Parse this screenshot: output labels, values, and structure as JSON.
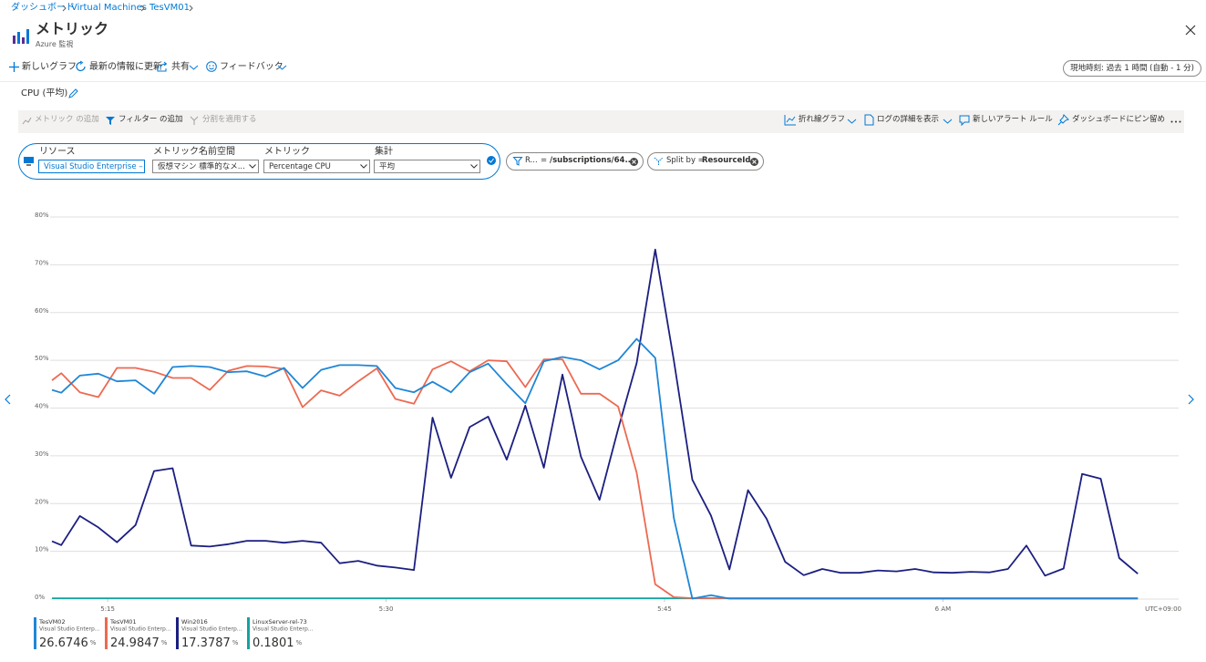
{
  "breadcrumb": [
    "ダッシュボード",
    "Virtual Machines",
    "TesVM01"
  ],
  "header": {
    "title": "メトリック",
    "subtitle": "Azure 監視"
  },
  "toolbar": [
    "新しいグラフ",
    "最新の情報に更新",
    "共有",
    "フィードバック"
  ],
  "time_range": "現地時刻: 過去 1 時間 (自動 - 1 分)",
  "panel": {
    "title": "CPU (平均)",
    "actions_left": [
      "メトリック の追加",
      "フィルター の追加",
      "分割を適用する"
    ],
    "actions_right": [
      "折れ線グラフ",
      "ログの詳細を表示",
      "新しいアラート ルール",
      "ダッシュボードにピン留め"
    ],
    "selector": {
      "labels": [
        "リソース",
        "メトリック名前空間",
        "メトリック",
        "集計"
      ],
      "values": [
        "Visual Studio Enterprise – ...",
        "仮想マシン 標準的なメ...",
        "Percentage CPU",
        "平均"
      ]
    },
    "filter": {
      "key": "R...",
      "operator": "=",
      "value": "/subscriptions/64..."
    },
    "split": {
      "label": "Split by =",
      "value": "ResourceId"
    }
  },
  "chart_data": {
    "type": "line",
    "x": [
      12,
      12.5,
      13.5,
      14.5,
      15.5,
      16.5,
      17.5,
      18.5,
      19.5,
      20.5,
      21.5,
      22.5,
      23.5,
      24.5,
      25.5,
      26.5,
      27.5,
      28.5,
      29.5,
      30.5,
      31.5,
      32.5,
      33.5,
      34.5,
      35.5,
      36.5,
      37.5,
      38.5,
      39.5,
      40.5,
      41.5,
      42.5,
      43.5,
      44.5,
      45.5,
      46.5,
      47.5,
      48.5,
      49.5,
      50.5,
      51.5,
      52.5,
      53.5,
      54.5,
      55.5,
      56.5,
      57.5,
      58.5,
      59.5,
      60.5,
      61.5,
      62.5,
      63.5,
      64.5,
      65.5,
      66.5,
      67.5,
      68.5,
      69.5,
      70.5
    ],
    "xlim": [
      11.9,
      72.7
    ],
    "xticks": [
      {
        "value": 15,
        "label": "5:15"
      },
      {
        "value": 30,
        "label": "5:30"
      },
      {
        "value": 45,
        "label": "5:45"
      },
      {
        "value": 60,
        "label": "6 AM"
      }
    ],
    "x_axis_note": "UTC+09:00",
    "ylim": [
      0,
      80
    ],
    "yticks": [
      {
        "value": 0,
        "label": "0%"
      },
      {
        "value": 10,
        "label": "10%"
      },
      {
        "value": 20,
        "label": "20%"
      },
      {
        "value": 30,
        "label": "30%"
      },
      {
        "value": 40,
        "label": "40%"
      },
      {
        "value": 50,
        "label": "50%"
      },
      {
        "value": 60,
        "label": "60%"
      },
      {
        "value": 70,
        "label": "70%"
      },
      {
        "value": 80,
        "label": "80%"
      }
    ],
    "grid": true,
    "series": [
      {
        "name": "TesVM02",
        "color": "#1f86d6",
        "summary_label": "Visual Studio Enterp...",
        "summary_value": 26.6746,
        "summary_unit": "%",
        "values": [
          43.8,
          43.2,
          46.8,
          47.2,
          45.6,
          45.8,
          43,
          48.6,
          48.8,
          48.6,
          47.5,
          47.7,
          46.6,
          48.4,
          44.2,
          48,
          49,
          49,
          48.8,
          44.2,
          43.3,
          45.5,
          43.3,
          47.5,
          49.3,
          45,
          41,
          49.8,
          50.7,
          50,
          48.1,
          50,
          54.5,
          50.5,
          17,
          0.1,
          0.8,
          0.1,
          0.1,
          0.1,
          0.1,
          0.1,
          0.1,
          0.1,
          0.1,
          0.1,
          0.1,
          0.1,
          0.1,
          0.1,
          0.1,
          0.1,
          0.1,
          0.1,
          0.1,
          0.1,
          0.1,
          0.1,
          0.1,
          0.1
        ]
      },
      {
        "name": "TesVM01",
        "color": "#ec6a52",
        "summary_label": "Visual Studio Enterp...",
        "summary_value": 24.9847,
        "summary_unit": "%",
        "values": [
          45.8,
          47.3,
          43.3,
          42.3,
          48.4,
          48.4,
          47.6,
          46.3,
          46.3,
          43.8,
          47.8,
          48.8,
          48.7,
          48.2,
          40.2,
          43.7,
          42.6,
          45.6,
          48.3,
          41.9,
          40.9,
          48.1,
          49.8,
          47.7,
          50,
          49.8,
          44.4,
          50.2,
          50.2,
          43,
          43,
          40.3,
          26.5,
          3.1,
          0.4,
          0.2,
          0.2,
          0.2,
          0.2,
          0.2,
          0.2,
          0.2,
          0.2,
          0.2,
          0.2,
          0.2,
          0.2,
          0.2,
          0.2,
          0.2,
          0.2,
          0.2,
          0.2,
          0.2,
          0.2,
          0.2,
          0.2,
          0.2,
          0.2,
          0.2
        ]
      },
      {
        "name": "Win2016",
        "color": "#1b1f80",
        "summary_label": "Visual Studio Enterp...",
        "summary_value": 17.3787,
        "summary_unit": "%",
        "values": [
          12.1,
          11.3,
          17.4,
          15,
          11.9,
          15.5,
          26.8,
          27.4,
          11.2,
          11,
          11.5,
          12.2,
          12.2,
          11.8,
          12.2,
          11.8,
          7.5,
          8,
          7,
          6.6,
          6.1,
          38,
          25.4,
          36,
          38.2,
          29.2,
          40.5,
          27.5,
          47,
          29.8,
          20.8,
          35.6,
          49.4,
          73.2,
          50,
          25,
          17.5,
          6.2,
          22.8,
          16.8,
          7.8,
          5,
          6.3,
          5.5,
          5.5,
          6,
          5.8,
          6.3,
          5.6,
          5.5,
          5.7,
          5.6,
          6.3,
          11.2,
          4.9,
          6.4,
          26.2,
          25.2,
          8.6,
          5.3
        ]
      },
      {
        "name": "LinuxServer-rel-73",
        "color": "#14a39f",
        "summary_label": "Visual Studio Enterp...",
        "summary_value": 0.1801,
        "summary_unit": "%",
        "values": [
          0.18,
          0.18,
          0.18,
          0.18,
          0.18,
          0.18,
          0.18,
          0.18,
          0.18,
          0.18,
          0.18,
          0.18,
          0.18,
          0.18,
          0.18,
          0.18,
          0.18,
          0.18,
          0.18,
          0.18,
          0.18,
          0.18,
          0.18,
          0.18,
          0.18,
          0.18,
          0.18,
          0.18,
          0.18,
          0.18,
          0.18,
          0.18,
          0.18,
          0.18,
          0.18,
          0.18,
          0.18,
          0.18,
          0.18,
          0.18,
          0.18,
          0.18,
          0.18,
          0.18,
          0.18,
          0.18,
          0.18,
          0.18,
          0.18,
          0.18,
          0.18,
          0.18,
          0.18,
          0.18,
          0.18,
          0.18,
          0.18,
          0.18,
          0.18,
          0.18
        ]
      }
    ]
  }
}
